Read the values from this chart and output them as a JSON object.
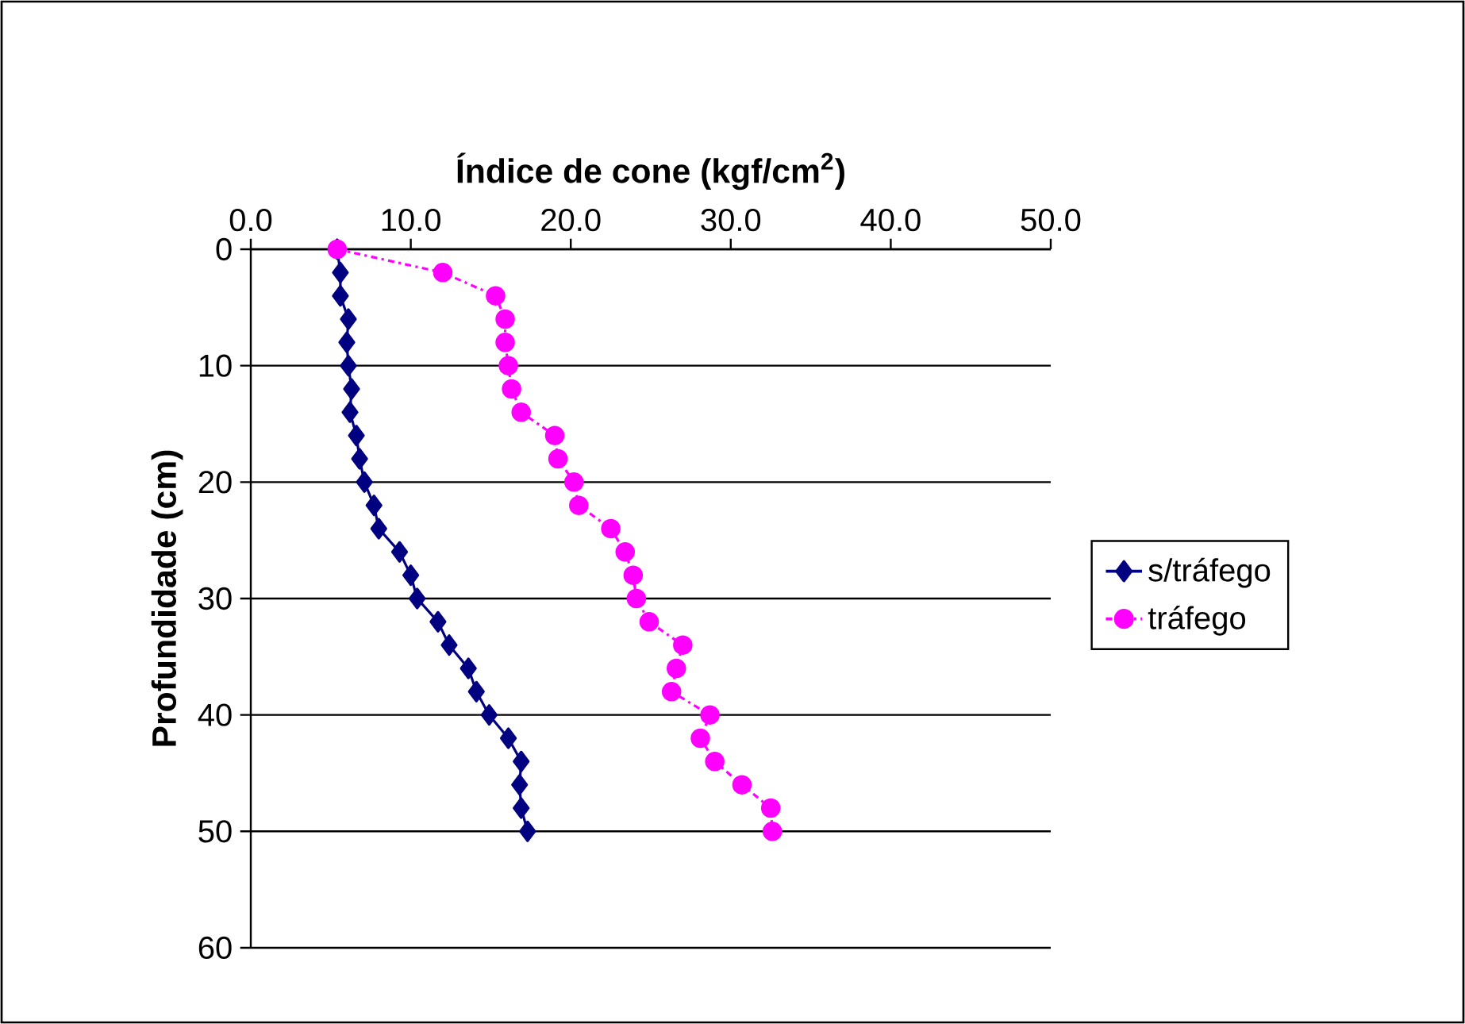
{
  "chart_data": {
    "type": "line",
    "xlabel": "Índice de cone (kgf/cm$^{2}$)",
    "ylabel": "Profundidade (cm)",
    "xlim": [
      0,
      50
    ],
    "xticks": [
      {
        "value": 0,
        "label": "0.0"
      },
      {
        "value": 10,
        "label": "10.0"
      },
      {
        "value": 20,
        "label": "20.0"
      },
      {
        "value": 30,
        "label": "30.0"
      },
      {
        "value": 40,
        "label": "40.0"
      },
      {
        "value": 50,
        "label": "50.0"
      }
    ],
    "ylim": [
      60,
      0
    ],
    "yticks": [
      0,
      10,
      20,
      30,
      40,
      50,
      60
    ],
    "grid": "y",
    "legend": "right",
    "series": [
      {
        "name": "s/tráfego",
        "color": "#000080",
        "marker": "diamond",
        "line_style": "solid",
        "x": [
          5.4,
          5.6,
          5.6,
          6.1,
          6.0,
          6.1,
          6.3,
          6.2,
          6.6,
          6.8,
          7.1,
          7.7,
          8.0,
          9.3,
          10.0,
          10.4,
          11.7,
          12.4,
          13.6,
          14.1,
          14.9,
          16.1,
          16.9,
          16.8,
          16.9,
          17.3
        ],
        "values": [
          0,
          2,
          4,
          6,
          8,
          10,
          12,
          14,
          16,
          18,
          20,
          22,
          24,
          26,
          28,
          30,
          32,
          34,
          36,
          38,
          40,
          42,
          44,
          46,
          48,
          50
        ]
      },
      {
        "name": "tráfego",
        "color": "#ff00ff",
        "marker": "circle",
        "line_style": "dashed",
        "x": [
          5.4,
          12.0,
          15.3,
          15.9,
          15.9,
          16.1,
          16.3,
          16.9,
          19.0,
          19.2,
          20.2,
          20.5,
          22.5,
          23.4,
          23.9,
          24.1,
          24.9,
          27.0,
          26.6,
          26.3,
          28.7,
          28.1,
          29.0,
          30.7,
          32.5,
          32.6
        ],
        "values": [
          0,
          2,
          4,
          6,
          8,
          10,
          12,
          14,
          16,
          18,
          20,
          22,
          24,
          26,
          28,
          30,
          32,
          34,
          36,
          38,
          40,
          42,
          44,
          46,
          48,
          50
        ]
      }
    ]
  }
}
